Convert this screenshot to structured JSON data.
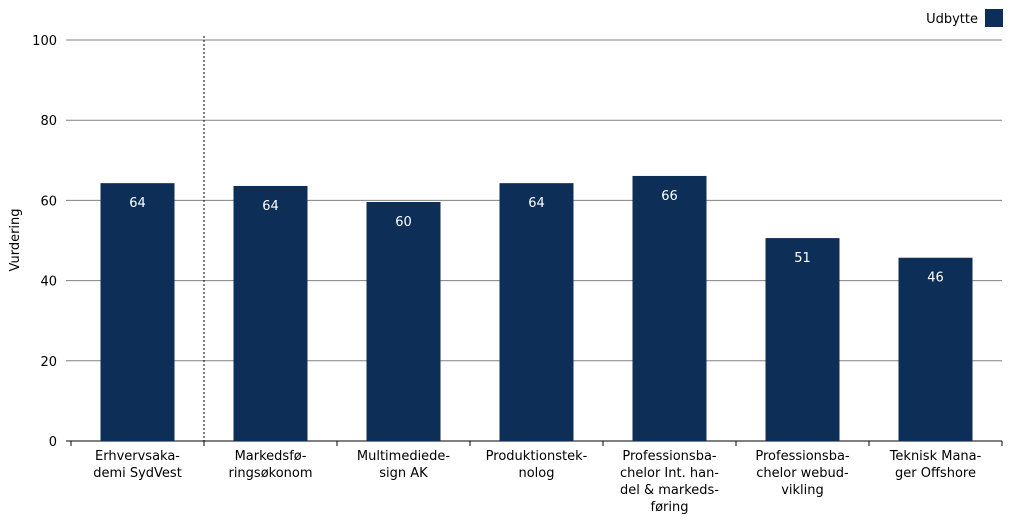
{
  "chart_data": {
    "type": "bar",
    "categories": [
      [
        "Erhvervsaka-",
        "demi SydVest"
      ],
      [
        "Markedsfø-",
        "ringsøkonom"
      ],
      [
        "Multimediede-",
        "sign AK"
      ],
      [
        "Produktionstek-",
        "nolog"
      ],
      [
        "Professionsba-",
        "chelor Int. han-",
        "del & markeds-",
        "føring"
      ],
      [
        "Professionsba-",
        "chelor webud-",
        "vikling"
      ],
      [
        "Teknisk Mana-",
        "ger Offshore"
      ]
    ],
    "series": [
      {
        "name": "Udbytte",
        "values": [
          64.3,
          63.6,
          59.6,
          64.3,
          66.1,
          50.6,
          45.7
        ],
        "labels": [
          "64",
          "64",
          "60",
          "64",
          "66",
          "51",
          "46"
        ]
      }
    ],
    "title": "",
    "xlabel": "",
    "ylabel": "Vurdering",
    "ylim": [
      0,
      100
    ],
    "yticks": [
      "0",
      "20",
      "40",
      "60",
      "80",
      "100"
    ],
    "grid": true,
    "legend": "top-right",
    "bar_color": "#0d2e56",
    "grid_color": "#808080",
    "reference_line_after_category": 0
  }
}
